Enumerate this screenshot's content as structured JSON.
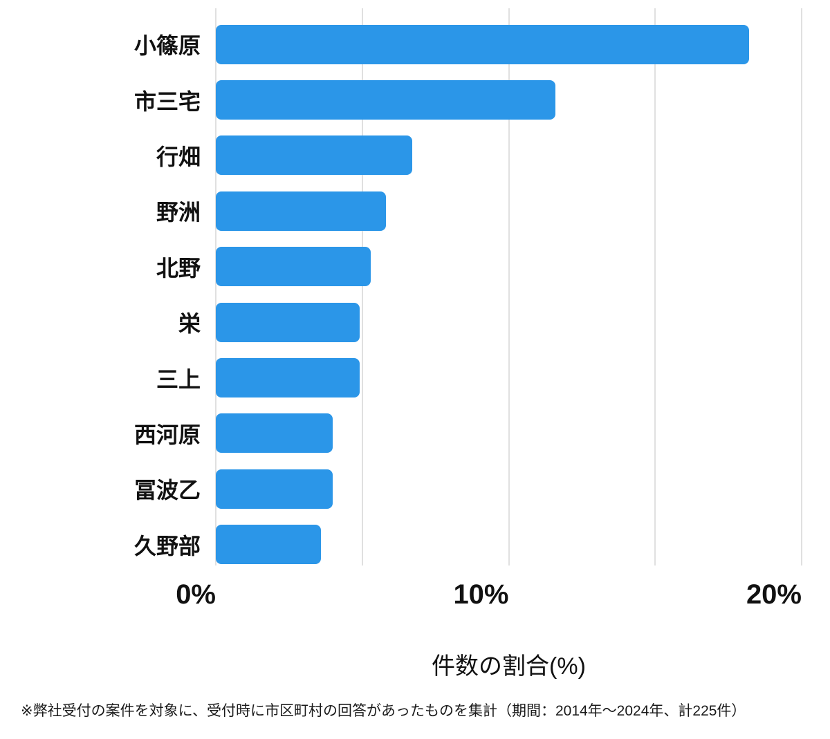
{
  "chart_data": {
    "type": "bar",
    "orientation": "horizontal",
    "categories": [
      "小篠原",
      "市三宅",
      "行畑",
      "野洲",
      "北野",
      "栄",
      "三上",
      "西河原",
      "冨波乙",
      "久野部"
    ],
    "values": [
      18.2,
      11.6,
      6.7,
      5.8,
      5.3,
      4.9,
      4.9,
      4.0,
      4.0,
      3.6
    ],
    "xlabel": "件数の割合(%)",
    "xlim": [
      0,
      20
    ],
    "x_ticks": [
      {
        "label": "0%",
        "value": 0
      },
      {
        "label": "10%",
        "value": 10
      },
      {
        "label": "20%",
        "value": 20
      }
    ],
    "grid_values": [
      0,
      5,
      10,
      15,
      20
    ],
    "grid": true,
    "legend": "none",
    "bar_color": "#2b96e8",
    "grid_color": "#e0e0e0",
    "text_color": "#111111"
  },
  "footnote": "※弊社受付の案件を対象に、受付時に市区町村の回答があったものを集計（期間：2014年～2024年、計225件）"
}
